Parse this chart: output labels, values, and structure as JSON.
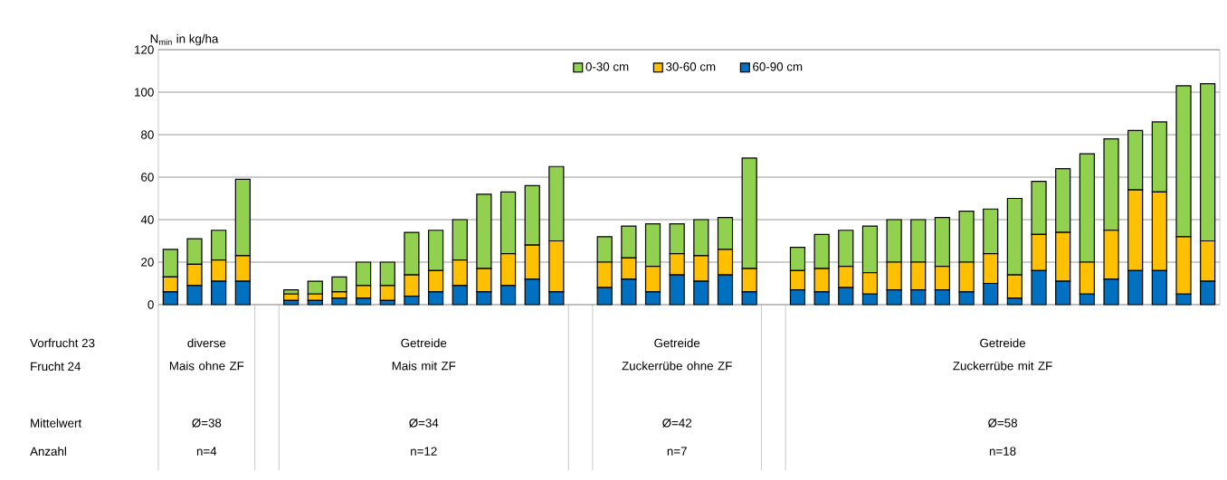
{
  "chart_data": {
    "type": "bar",
    "stacked": true,
    "ylabel": "N$_{min}$ in kg/ha",
    "categories": [
      null,
      null,
      null,
      null,
      null,
      null,
      null,
      null,
      null,
      null,
      null,
      null,
      null,
      null,
      null,
      null,
      null,
      null,
      null,
      null,
      null,
      null,
      null,
      null,
      null,
      null,
      null,
      null,
      null,
      null,
      null,
      null,
      null,
      null,
      null,
      null,
      null,
      null,
      null,
      null,
      null,
      null,
      null,
      null
    ],
    "series": [
      {
        "name": "60-90 cm",
        "color": "#0070c0",
        "values": [
          6,
          9,
          11,
          11,
          null,
          2,
          2,
          3,
          3,
          2,
          4,
          6,
          9,
          6,
          9,
          12,
          6,
          null,
          8,
          12,
          6,
          14,
          11,
          14,
          6,
          null,
          7,
          6,
          8,
          5,
          7,
          7,
          7,
          6,
          10,
          3,
          16,
          11,
          5,
          12,
          16,
          16,
          5,
          11
        ]
      },
      {
        "name": "30-60 cm",
        "color": "#ffc000",
        "values": [
          7,
          10,
          10,
          12,
          null,
          3,
          3,
          3,
          6,
          7,
          10,
          10,
          12,
          11,
          15,
          16,
          24,
          null,
          12,
          10,
          12,
          10,
          12,
          12,
          11,
          null,
          9,
          11,
          10,
          10,
          13,
          13,
          11,
          14,
          14,
          11,
          17,
          23,
          15,
          23,
          38,
          37,
          27,
          19
        ]
      },
      {
        "name": "0-30 cm",
        "color": "#92d050",
        "values": [
          13,
          12,
          14,
          36,
          null,
          2,
          6,
          7,
          11,
          11,
          20,
          19,
          19,
          35,
          29,
          28,
          35,
          null,
          12,
          15,
          20,
          14,
          17,
          15,
          52,
          null,
          11,
          16,
          17,
          22,
          20,
          20,
          23,
          24,
          21,
          36,
          25,
          30,
          51,
          43,
          28,
          33,
          71,
          74
        ]
      }
    ],
    "ylim": [
      0,
      120
    ],
    "yticks": [
      0,
      20,
      40,
      60,
      80,
      100,
      120
    ],
    "grid": "y",
    "legend": "top",
    "tick_labels": "y",
    "annotations": [
      "Vorfrucht 23",
      "Frucht 24",
      "Mittelwert",
      "Anzahl",
      "diverse",
      "Mais ohne ZF",
      "Ø=38",
      "n=4",
      "Getreide",
      "Mais mit ZF",
      "Ø=34",
      "n=12",
      "Getreide",
      "Zuckerrübe ohne ZF",
      "Ø=42",
      "n=7",
      "Getreide",
      "Zuckerrübe mit ZF",
      "Ø=58",
      "n=18"
    ]
  }
}
